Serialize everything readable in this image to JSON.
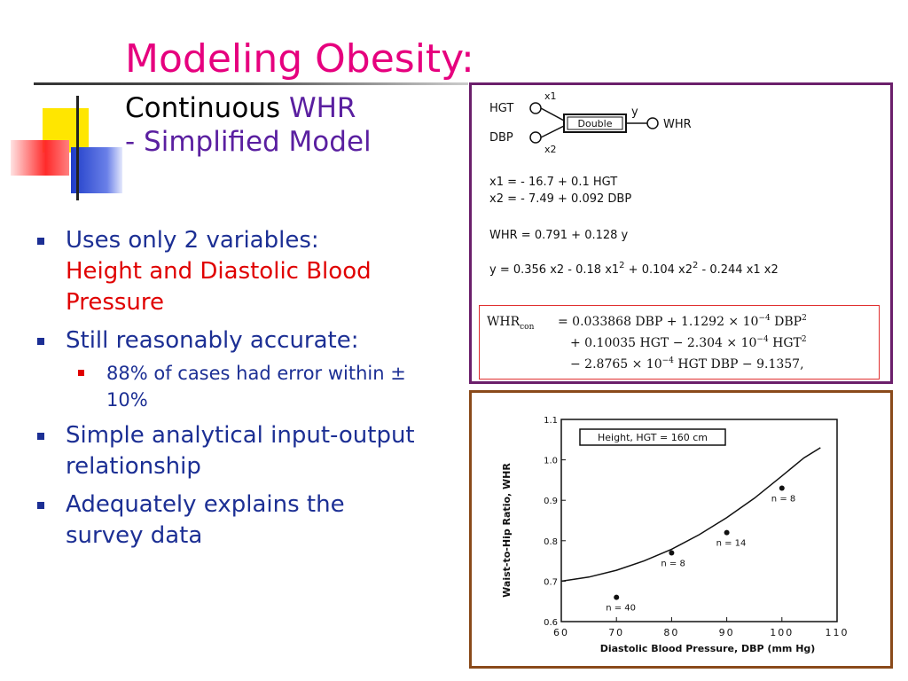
{
  "title": "Modeling Obesity:",
  "subtitle": {
    "line1_black": "Continuous ",
    "line1_purple": "WHR",
    "line2": "- Simplified Model"
  },
  "bullets": [
    {
      "text": "Uses only 2 variables:",
      "highlight": "Height and Diastolic Blood Pressure"
    },
    {
      "text": "Still reasonably accurate:",
      "sub": [
        "88% of cases had error within ± 10%"
      ]
    },
    {
      "text": "Simple analytical input-output relationship"
    },
    {
      "text": "Adequately explains the survey data"
    }
  ],
  "model_diagram": {
    "input1": "HGT",
    "input2": "DBP",
    "x1_label": "x1",
    "x2_label": "x2",
    "block": "Double",
    "y_label": "y",
    "output": "WHR",
    "eq_x1": "x1 = - 16.7 + 0.1 HGT",
    "eq_x2": "x2 = - 7.49 + 0.092 DBP",
    "eq_whr": "WHR = 0.791 + 0.128 y",
    "eq_y_part1": "y = 0.356 x2 - 0.18 x1",
    "eq_y_part2": " + 0.104 x2",
    "eq_y_part3": " - 0.244 x1 x2",
    "sup2": "2"
  },
  "whr_con": {
    "lhs": "WHR",
    "lhs_sub": "con",
    "line1": "= 0.033868 DBP + 1.1292 × 10",
    "line1_exp": "−4",
    "line1_tail": " DBP",
    "line2": "+ 0.10035 HGT − 2.304 × 10",
    "line2_exp": "−4",
    "line2_tail": " HGT",
    "line3": "− 2.8765 × 10",
    "line3_exp": "−4",
    "line3_tail": " HGT DBP − 9.1357,"
  },
  "chart_data": {
    "type": "line",
    "title": "",
    "legend_box": "Height, HGT = 160 cm",
    "xlabel": "Diastolic Blood Pressure, DBP (mm Hg)",
    "ylabel": "Waist-to-Hip Ratio, WHR",
    "xlim": [
      60,
      110
    ],
    "ylim": [
      0.6,
      1.1
    ],
    "x_ticks": [
      "60",
      "70",
      "80",
      "90",
      "100",
      "110"
    ],
    "y_ticks": [
      "0.6",
      "0.7",
      "0.8",
      "0.9",
      "1.0",
      "1.1"
    ],
    "curve": {
      "x": [
        60,
        65,
        70,
        75,
        80,
        85,
        90,
        95,
        100,
        104,
        107
      ],
      "y": [
        0.7,
        0.71,
        0.727,
        0.75,
        0.779,
        0.815,
        0.857,
        0.905,
        0.96,
        1.005,
        1.03
      ]
    },
    "points": [
      {
        "x": 70,
        "y": 0.66,
        "label": "n = 40"
      },
      {
        "x": 80,
        "y": 0.77,
        "label": "n = 8"
      },
      {
        "x": 90,
        "y": 0.82,
        "label": "n = 14"
      },
      {
        "x": 100,
        "y": 0.93,
        "label": "n = 8"
      }
    ]
  }
}
